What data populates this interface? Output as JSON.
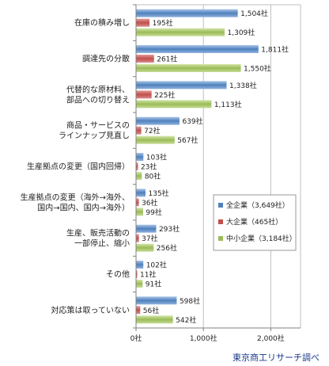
{
  "chart_data": {
    "type": "bar",
    "orientation": "horizontal",
    "categories": [
      [
        "在庫の積み増し"
      ],
      [
        "調達先の分散"
      ],
      [
        "代替的な原材料、",
        "部品への切り替え"
      ],
      [
        "商品・サービスの",
        "ラインナップ見直し"
      ],
      [
        "生産拠点の変更（国内回帰）"
      ],
      [
        "生産拠点の変更（海外→海外、",
        "国内→国内、国内→海外）"
      ],
      [
        "生産、販売活動の",
        "一部停止、縮小"
      ],
      [
        "その他"
      ],
      [
        "対応策は取っていない"
      ]
    ],
    "series": [
      {
        "name": "全企業（3,649社）",
        "color": "#4f81bd",
        "values": [
          1504,
          1811,
          1338,
          639,
          103,
          135,
          293,
          102,
          598
        ],
        "labels": [
          "1,504社",
          "1,811社",
          "1,338社",
          "639社",
          "103社",
          "135社",
          "293社",
          "102社",
          "598社"
        ]
      },
      {
        "name": "大企業（465社）",
        "color": "#c0504d",
        "values": [
          195,
          261,
          225,
          72,
          23,
          36,
          37,
          11,
          56
        ],
        "labels": [
          "195社",
          "261社",
          "225社",
          "72社",
          "23社",
          "36社",
          "37社",
          "11社",
          "56社"
        ]
      },
      {
        "name": "中小企業（3,184社）",
        "color": "#9bbb59",
        "values": [
          1309,
          1550,
          1113,
          567,
          80,
          99,
          256,
          91,
          542
        ],
        "labels": [
          "1,309社",
          "1,550社",
          "1,113社",
          "567社",
          "80社",
          "99社",
          "256社",
          "91社",
          "542社"
        ]
      }
    ],
    "xlim": [
      0,
      2500
    ],
    "xticks": [
      0,
      1000,
      2000
    ],
    "xtick_labels": [
      "0社",
      "1,000社",
      "2,000社"
    ],
    "grid": true,
    "legend_position": "right"
  },
  "source": "東京商工リサーチ調べ"
}
